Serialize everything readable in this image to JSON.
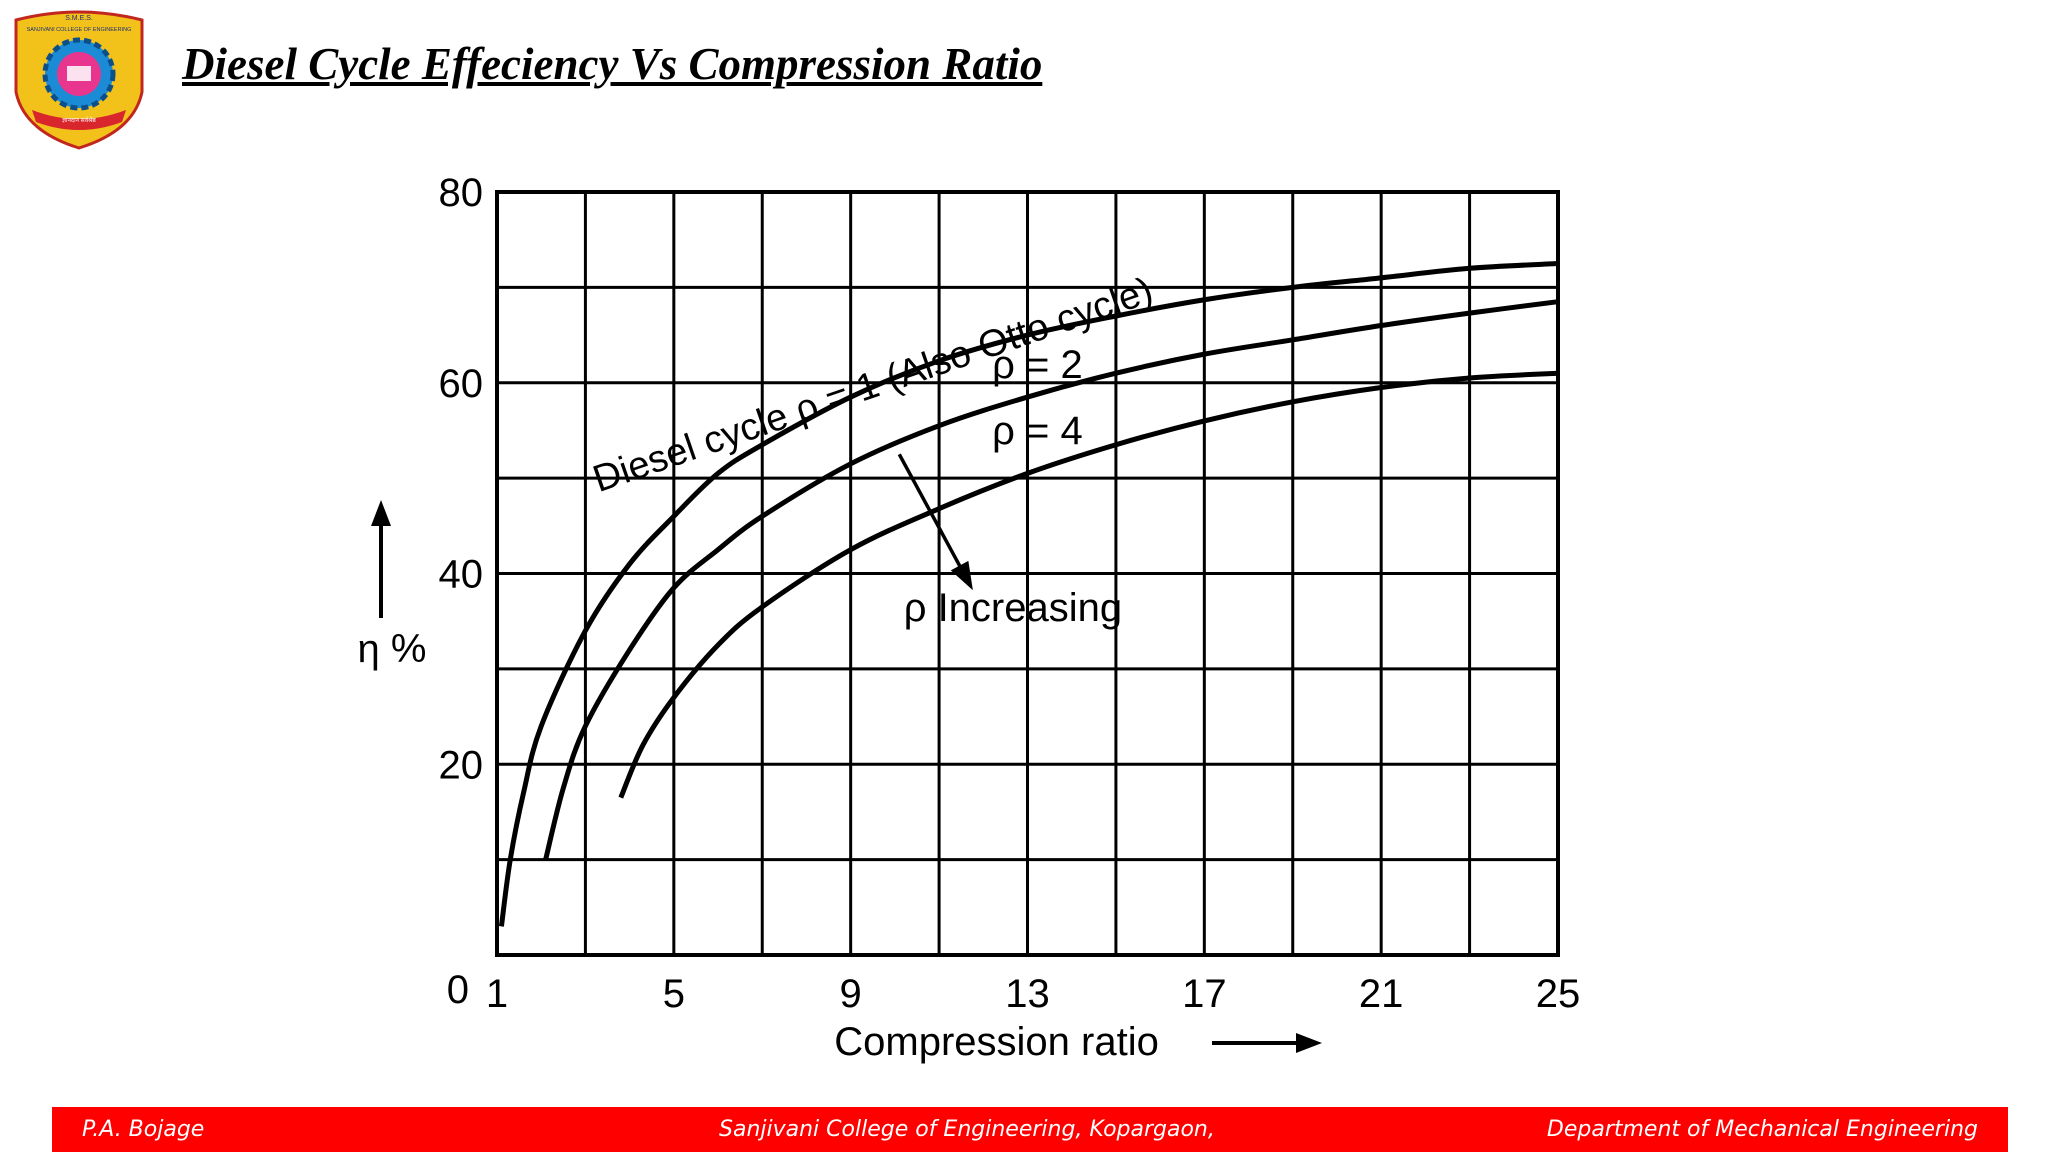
{
  "slide": {
    "title": "Diesel Cycle Effeciency Vs Compression Ratio"
  },
  "logo": {
    "icon": "college-crest-logo",
    "top_text": "S.M.E.S.",
    "name_text": "SANJIVANI COLLEGE OF ENGINEERING",
    "motto_text": "ज्ञानदान सर्वश्रेष्ठ",
    "colors": {
      "outer": "#f2c21b",
      "ring": "#1b8bd6",
      "inner": "#e8368f",
      "ribbon": "#d8262c"
    }
  },
  "chart_data": {
    "type": "line",
    "xlabel": "Compression ratio",
    "ylabel": "η %",
    "xlim": [
      1,
      25
    ],
    "ylim": [
      0,
      80
    ],
    "x_ticks": [
      "1",
      "5",
      "9",
      "13",
      "17",
      "21",
      "25"
    ],
    "y_ticks": [
      "0",
      "20",
      "40",
      "60",
      "80"
    ],
    "grid": true,
    "series": [
      {
        "name": "Diesel cycle ρ = 1 (Also Otto cycle)",
        "x": [
          1.1,
          1.3,
          1.6,
          2,
          3,
          4,
          5,
          6,
          7,
          9,
          11,
          13,
          15,
          17,
          19,
          21,
          23,
          25
        ],
        "values": [
          3,
          10,
          17,
          24,
          34,
          41,
          46,
          50.5,
          53.5,
          58.5,
          62.3,
          65,
          67,
          68.7,
          70,
          71,
          72,
          72.5
        ]
      },
      {
        "name": "ρ = 2",
        "x": [
          2.1,
          2.5,
          3,
          4,
          5,
          6,
          7,
          9,
          11,
          13,
          15,
          17,
          19,
          21,
          23,
          25
        ],
        "values": [
          10,
          17.5,
          24,
          32,
          38.5,
          42.5,
          46,
          51.5,
          55.5,
          58.5,
          61,
          63,
          64.5,
          66,
          67.3,
          68.5
        ]
      },
      {
        "name": "ρ = 4",
        "x": [
          3.8,
          4.3,
          5,
          6,
          7,
          9,
          11,
          13,
          15,
          17,
          19,
          21,
          23,
          25
        ],
        "values": [
          16.5,
          22,
          27,
          32.5,
          36.5,
          42.5,
          46.8,
          50.5,
          53.5,
          56,
          58,
          59.5,
          60.5,
          61
        ]
      }
    ],
    "annotations": [
      {
        "text": "ρ Increasing",
        "arrow": "down-right across the ρ = 2 and ρ = 4 curves"
      }
    ]
  },
  "footer": {
    "left": "P.A. Bojage",
    "center": "Sanjivani College of Engineering, Kopargaon,",
    "right": "Department of Mechanical Engineering",
    "background": "#ff0000"
  }
}
